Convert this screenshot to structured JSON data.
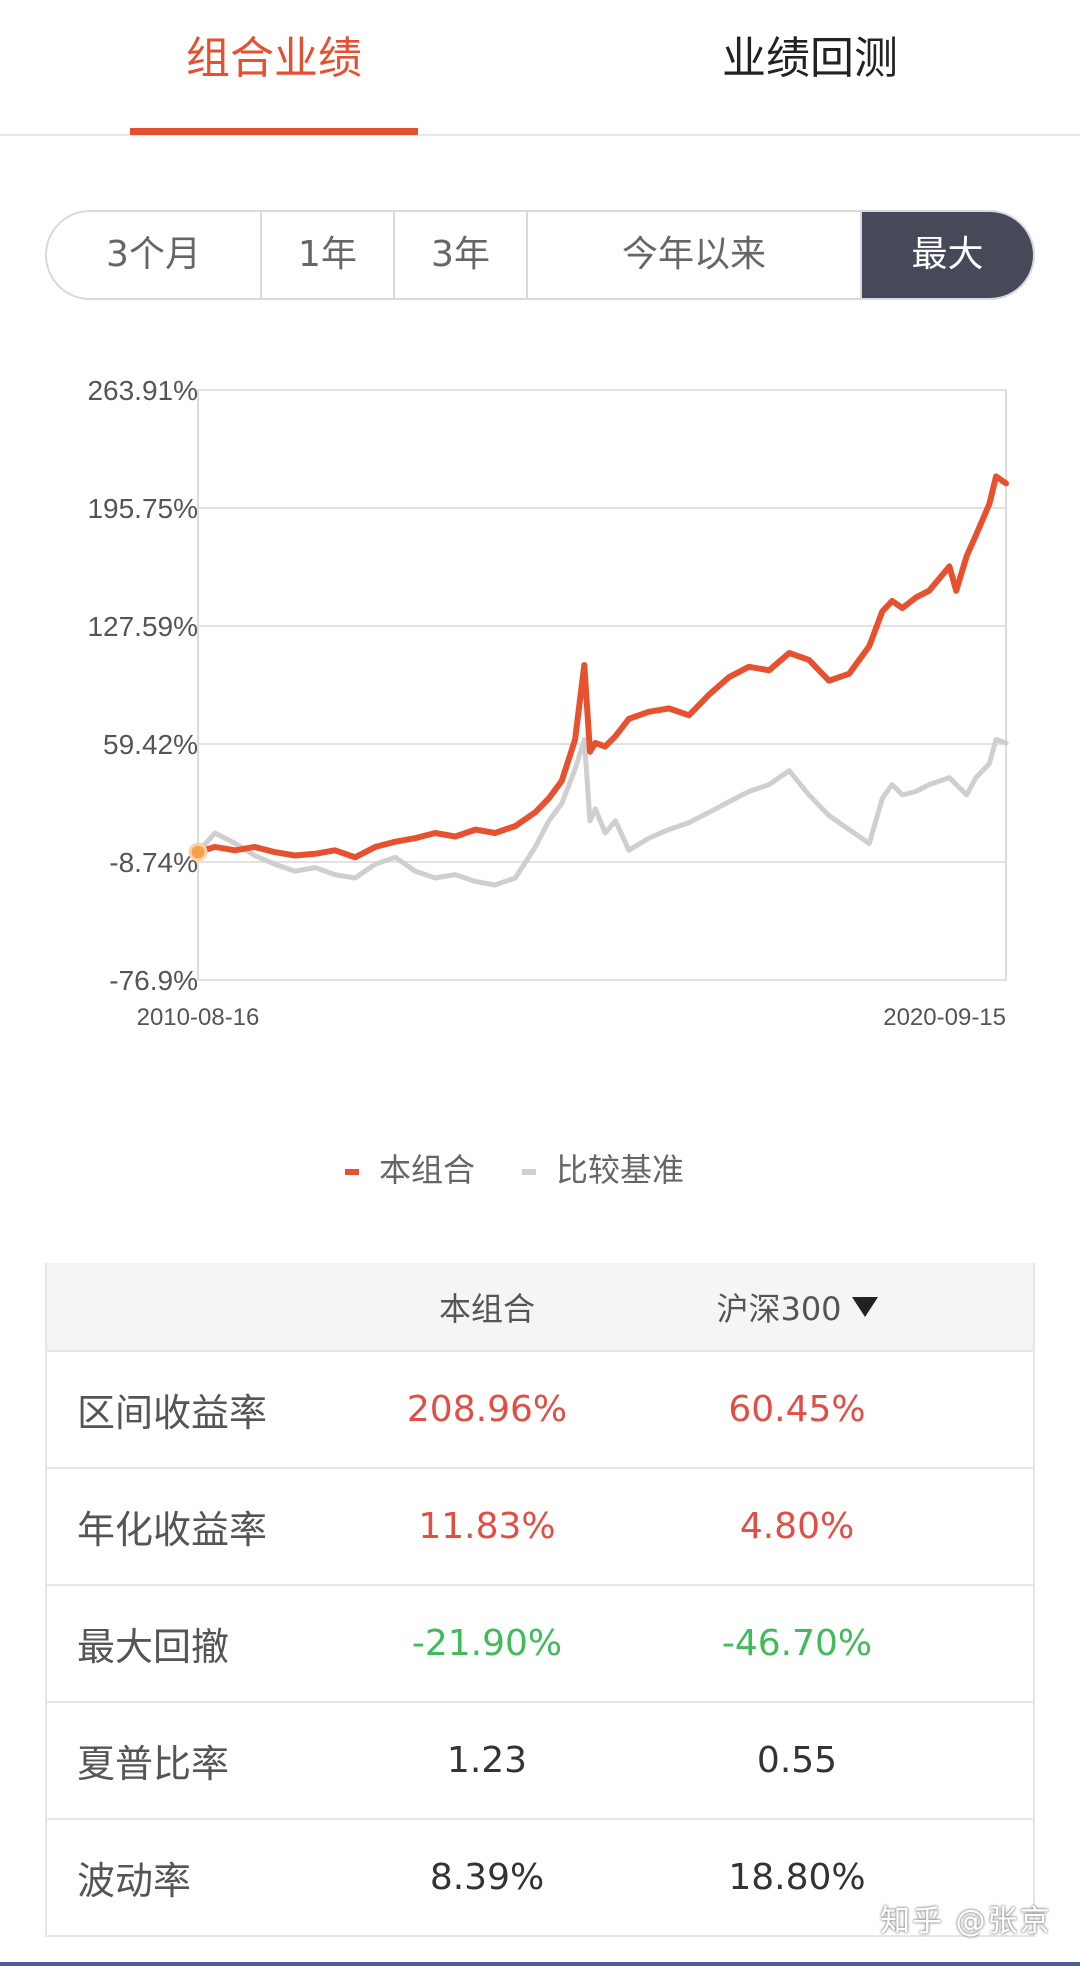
{
  "tabs": [
    {
      "label": "组合业绩",
      "active": true
    },
    {
      "label": "业绩回测",
      "active": false
    }
  ],
  "range_selector": [
    {
      "label": "3个月",
      "active": false
    },
    {
      "label": "1年",
      "active": false
    },
    {
      "label": "3年",
      "active": false
    },
    {
      "label": "今年以来",
      "active": false
    },
    {
      "label": "最大",
      "active": true
    }
  ],
  "chart_data": {
    "type": "line",
    "y_ticks": [
      "263.91%",
      "195.75%",
      "127.59%",
      "59.42%",
      "-8.74%",
      "-76.9%"
    ],
    "ylim": [
      -76.9,
      263.91
    ],
    "x_ticks": [
      "2010-08-16",
      "2020-09-15"
    ],
    "xlim": [
      "2010-08-16",
      "2020-09-15"
    ],
    "grid": true,
    "legend_position": "bottom-center",
    "series": [
      {
        "name": "本组合",
        "color": "#e8512f",
        "x": [
          "2010-08-16",
          "2010-11-01",
          "2011-02-01",
          "2011-05-01",
          "2011-08-01",
          "2011-11-01",
          "2012-02-01",
          "2012-05-01",
          "2012-08-01",
          "2012-11-01",
          "2013-02-01",
          "2013-05-01",
          "2013-08-01",
          "2013-11-01",
          "2014-02-01",
          "2014-05-01",
          "2014-08-01",
          "2014-11-01",
          "2015-01-01",
          "2015-03-01",
          "2015-05-01",
          "2015-06-12",
          "2015-07-08",
          "2015-08-01",
          "2015-09-15",
          "2015-11-01",
          "2016-01-01",
          "2016-04-01",
          "2016-07-01",
          "2016-10-01",
          "2017-01-01",
          "2017-04-01",
          "2017-07-01",
          "2017-10-01",
          "2018-01-01",
          "2018-04-01",
          "2018-07-01",
          "2018-10-01",
          "2019-01-01",
          "2019-03-01",
          "2019-04-15",
          "2019-06-01",
          "2019-08-01",
          "2019-10-01",
          "2020-01-01",
          "2020-02-01",
          "2020-03-20",
          "2020-05-01",
          "2020-07-01",
          "2020-08-01",
          "2020-09-15"
        ],
        "values": [
          -3,
          0,
          -2,
          0,
          -3,
          -5,
          -4,
          -2,
          -6,
          0,
          3,
          5,
          8,
          6,
          10,
          8,
          12,
          20,
          28,
          38,
          62,
          105,
          55,
          60,
          58,
          64,
          74,
          78,
          80,
          76,
          88,
          98,
          104,
          102,
          112,
          108,
          96,
          100,
          116,
          136,
          142,
          138,
          144,
          148,
          162,
          148,
          168,
          180,
          198,
          214,
          210
        ]
      },
      {
        "name": "比较基准",
        "color": "#cfcfcf",
        "x": [
          "2010-08-16",
          "2010-11-01",
          "2011-02-01",
          "2011-05-01",
          "2011-08-01",
          "2011-11-01",
          "2012-02-01",
          "2012-05-01",
          "2012-08-01",
          "2012-11-01",
          "2013-02-01",
          "2013-05-01",
          "2013-08-01",
          "2013-11-01",
          "2014-02-01",
          "2014-05-01",
          "2014-08-01",
          "2014-11-01",
          "2015-01-01",
          "2015-03-01",
          "2015-05-01",
          "2015-06-12",
          "2015-07-08",
          "2015-08-01",
          "2015-09-15",
          "2015-11-01",
          "2016-01-01",
          "2016-04-01",
          "2016-07-01",
          "2016-10-01",
          "2017-01-01",
          "2017-04-01",
          "2017-07-01",
          "2017-10-01",
          "2018-01-01",
          "2018-04-01",
          "2018-07-01",
          "2018-10-01",
          "2019-01-01",
          "2019-03-01",
          "2019-04-15",
          "2019-06-01",
          "2019-08-01",
          "2019-10-01",
          "2020-01-01",
          "2020-02-01",
          "2020-03-20",
          "2020-05-01",
          "2020-07-01",
          "2020-08-01",
          "2020-09-15"
        ],
        "values": [
          -3,
          8,
          2,
          -5,
          -10,
          -14,
          -12,
          -16,
          -18,
          -10,
          -6,
          -14,
          -18,
          -16,
          -20,
          -22,
          -18,
          0,
          15,
          25,
          45,
          62,
          15,
          22,
          8,
          15,
          -2,
          5,
          10,
          14,
          20,
          26,
          32,
          36,
          44,
          30,
          18,
          10,
          2,
          28,
          36,
          30,
          32,
          36,
          40,
          36,
          30,
          40,
          48,
          62,
          60
        ]
      }
    ]
  },
  "legend": [
    {
      "label": "本组合",
      "color": "#e8512f"
    },
    {
      "label": "比较基准",
      "color": "#cfcfcf"
    }
  ],
  "table": {
    "header": {
      "col_a": "本组合",
      "col_b": "沪深300"
    },
    "rows": [
      {
        "label": "区间收益率",
        "a": "208.96%",
        "b": "60.45%",
        "style": "red"
      },
      {
        "label": "年化收益率",
        "a": "11.83%",
        "b": "4.80%",
        "style": "red"
      },
      {
        "label": "最大回撤",
        "a": "-21.90%",
        "b": "-46.70%",
        "style": "green"
      },
      {
        "label": "夏普比率",
        "a": "1.23",
        "b": "0.55",
        "style": "plain"
      },
      {
        "label": "波动率",
        "a": "8.39%",
        "b": "18.80%",
        "style": "plain"
      }
    ]
  },
  "watermark": "知乎 @张京"
}
